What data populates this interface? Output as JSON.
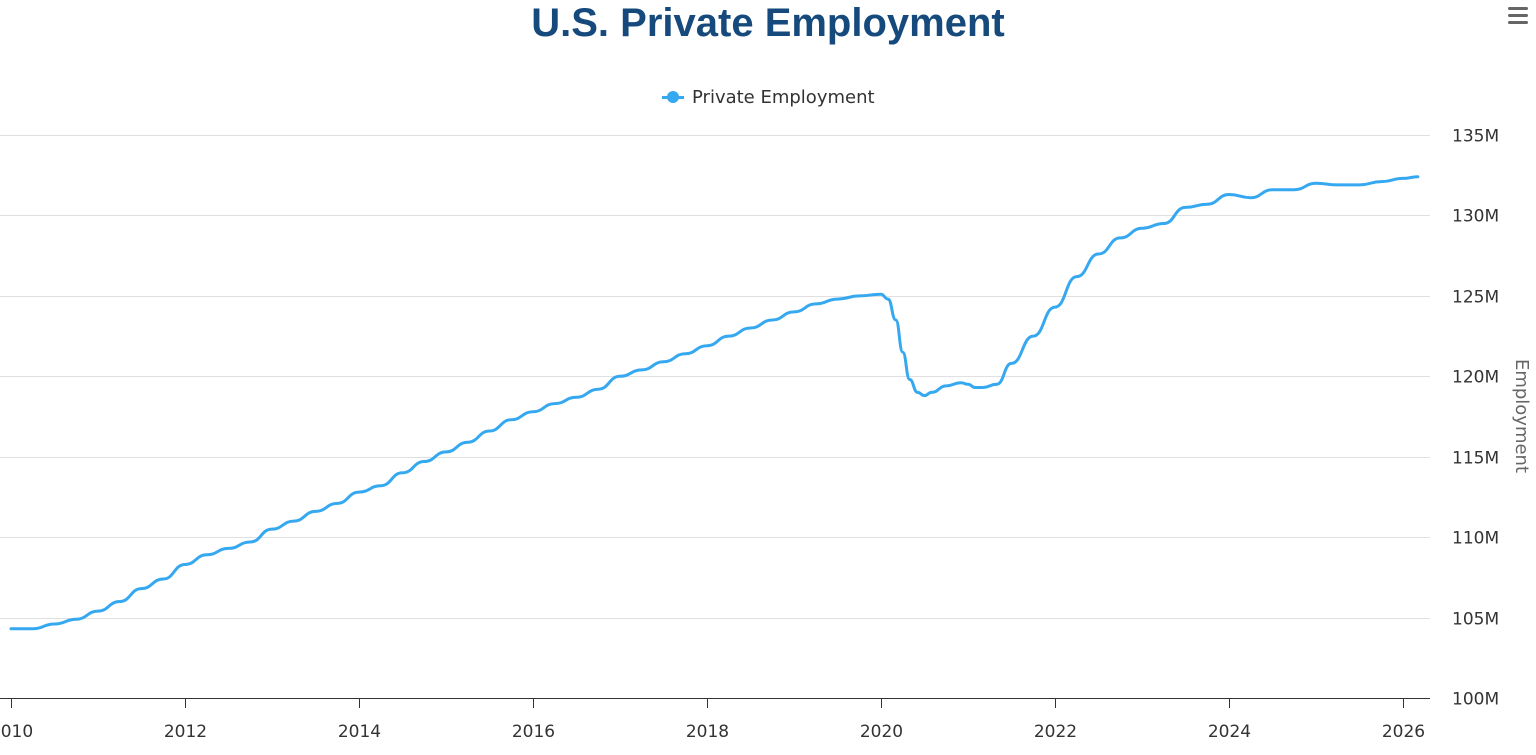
{
  "chart_data": {
    "type": "line",
    "title": "U.S. Private Employment",
    "xlabel": "",
    "ylabel": "Employment",
    "x_tick_labels": [
      "2010",
      "2012",
      "2014",
      "2016",
      "2018",
      "2020",
      "2022",
      "2024",
      "2026"
    ],
    "y_tick_labels": [
      "100M",
      "105M",
      "110M",
      "115M",
      "120M",
      "125M",
      "130M",
      "135M"
    ],
    "xlim": [
      2010.0,
      2026.5
    ],
    "ylim": [
      100,
      135
    ],
    "y_axis_side": "right",
    "grid": "horizontal",
    "legend_position": "top-center",
    "series_color": "#35a8f0",
    "series": [
      {
        "name": "Private Employment",
        "x": [
          2010.0,
          2010.25,
          2010.5,
          2010.75,
          2011.0,
          2011.25,
          2011.5,
          2011.75,
          2012.0,
          2012.25,
          2012.5,
          2012.75,
          2013.0,
          2013.25,
          2013.5,
          2013.75,
          2014.0,
          2014.25,
          2014.5,
          2014.75,
          2015.0,
          2015.25,
          2015.5,
          2015.75,
          2016.0,
          2016.25,
          2016.5,
          2016.75,
          2017.0,
          2017.25,
          2017.5,
          2017.75,
          2018.0,
          2018.25,
          2018.5,
          2018.75,
          2019.0,
          2019.25,
          2019.5,
          2019.75,
          2020.0,
          2020.08,
          2020.17,
          2020.25,
          2020.33,
          2020.42,
          2020.5,
          2020.58,
          2020.75,
          2020.92,
          2021.0,
          2021.08,
          2021.17,
          2021.33,
          2021.5,
          2021.75,
          2022.0,
          2022.25,
          2022.5,
          2022.75,
          2023.0,
          2023.25,
          2023.5,
          2023.75,
          2024.0,
          2024.25,
          2024.5,
          2024.75,
          2025.0,
          2025.25,
          2025.5,
          2025.75,
          2026.0,
          2026.17
        ],
        "values": [
          104.3,
          104.3,
          104.6,
          104.9,
          105.4,
          106.0,
          106.8,
          107.4,
          108.3,
          108.9,
          109.3,
          109.7,
          110.5,
          111.0,
          111.6,
          112.1,
          112.8,
          113.2,
          114.0,
          114.7,
          115.3,
          115.9,
          116.6,
          117.3,
          117.8,
          118.3,
          118.7,
          119.2,
          120.0,
          120.4,
          120.9,
          121.4,
          121.9,
          122.5,
          123.0,
          123.5,
          124.0,
          124.5,
          124.8,
          125.0,
          125.1,
          124.8,
          123.5,
          121.5,
          119.8,
          119.0,
          118.8,
          119.0,
          119.4,
          119.6,
          119.5,
          119.3,
          119.3,
          119.5,
          120.8,
          122.5,
          124.3,
          126.2,
          127.6,
          128.6,
          129.2,
          129.5,
          130.5,
          130.7,
          131.3,
          131.1,
          131.6,
          131.6,
          132.0,
          131.9,
          131.9,
          132.1,
          132.3,
          132.4
        ]
      }
    ]
  },
  "ui": {
    "legend_label": "Private Employment",
    "menu_icon": "hamburger-menu-icon"
  }
}
